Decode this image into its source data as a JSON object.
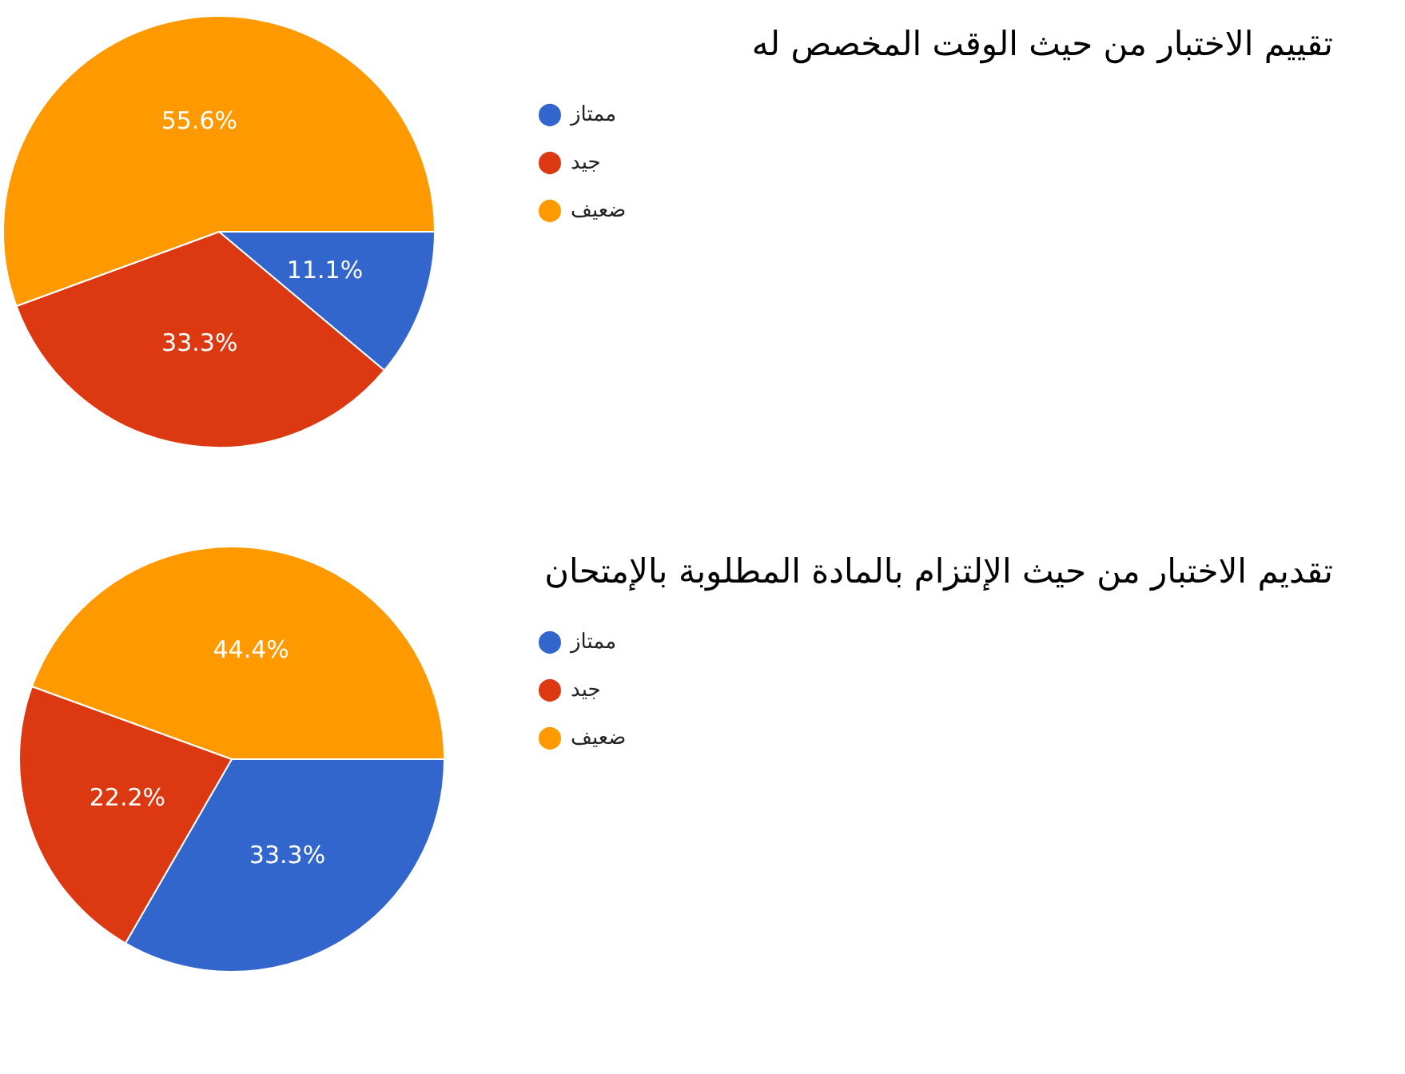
{
  "chart_data": [
    {
      "type": "pie",
      "title": "تقييم الاختبار من حيث الوقت المخصص له",
      "categories": [
        "ممتاز",
        "جيد",
        "ضعيف"
      ],
      "values": [
        11.1,
        33.3,
        55.6
      ],
      "colors": [
        "#3366cc",
        "#dc3912",
        "#ff9900"
      ],
      "value_labels": [
        "11.1%",
        "33.3%",
        "55.6%"
      ],
      "legend": "right"
    },
    {
      "type": "pie",
      "title": "تقديم الاختبار من حيث الإلتزام بالمادة المطلوبة بالإمتحان",
      "categories": [
        "ممتاز",
        "جيد",
        "ضعيف"
      ],
      "values": [
        33.3,
        22.2,
        44.4
      ],
      "colors": [
        "#3366cc",
        "#dc3912",
        "#ff9900"
      ],
      "value_labels": [
        "33.3%",
        "22.2%",
        "44.4%"
      ],
      "legend": "right"
    }
  ]
}
